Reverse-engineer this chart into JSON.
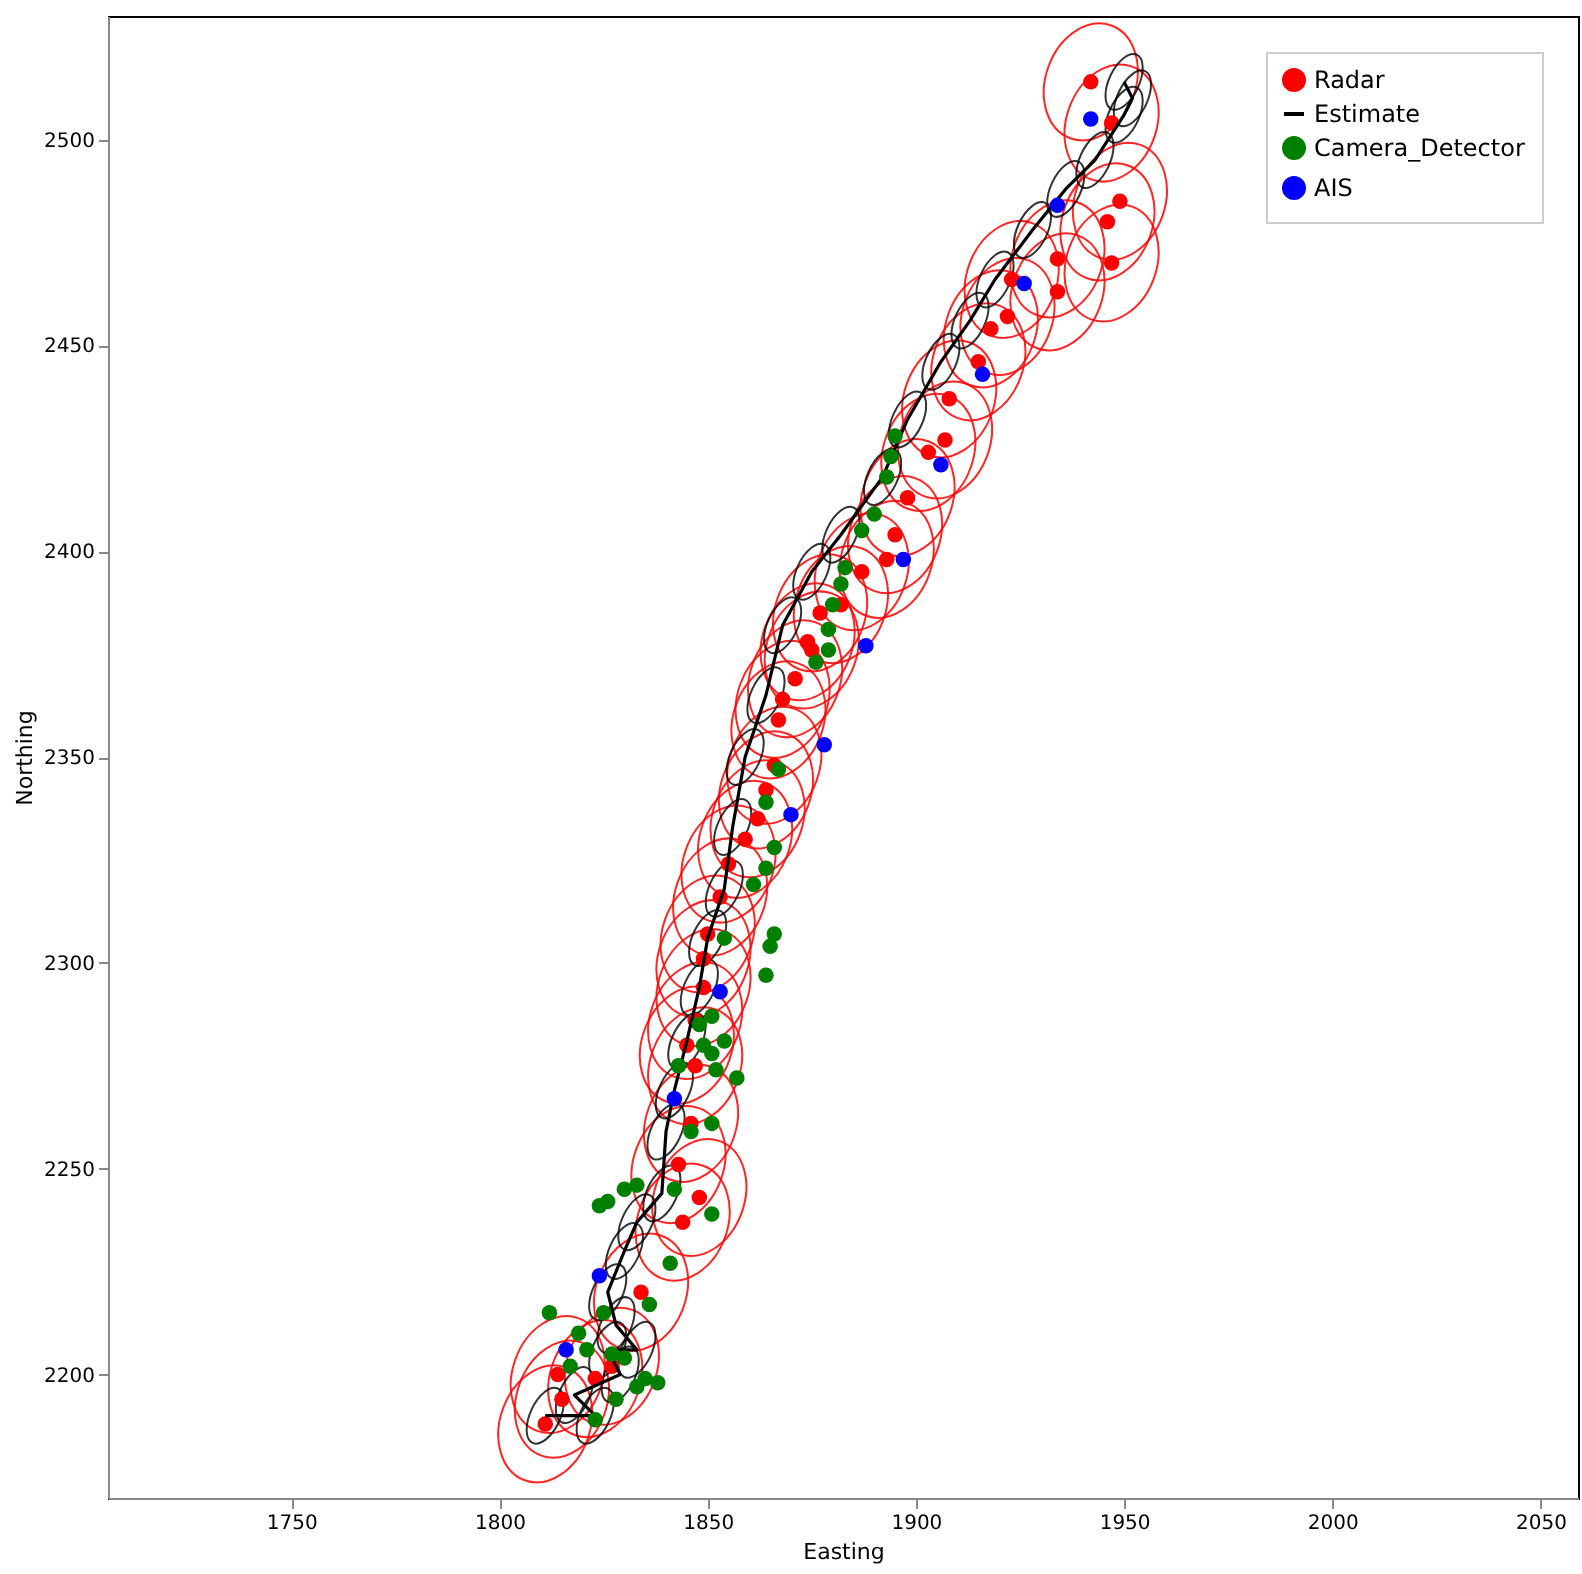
{
  "chart_data": {
    "type": "scatter",
    "xlabel": "Easting",
    "ylabel": "Northing",
    "xlim": [
      1706,
      2059
    ],
    "ylim": [
      2170,
      2530
    ],
    "xticks": [
      1750,
      1800,
      1850,
      1900,
      1950,
      2000,
      2050
    ],
    "yticks": [
      2200,
      2250,
      2300,
      2350,
      2400,
      2450,
      2500
    ],
    "grid": false,
    "legend": "top right",
    "marker": "circle",
    "series": [
      {
        "name": "Radar",
        "color": "#ff0000",
        "x": [
          1942,
          1947,
          1949,
          1946,
          1947,
          1934,
          1934,
          1923,
          1922,
          1918,
          1915,
          1908,
          1907,
          1903,
          1898,
          1895,
          1893,
          1887,
          1882,
          1877,
          1874,
          1875,
          1871,
          1868,
          1867,
          1866,
          1864,
          1862,
          1859,
          1855,
          1853,
          1850,
          1849,
          1849,
          1847,
          1845,
          1847,
          1846,
          1843,
          1848,
          1844,
          1834,
          1827,
          1823,
          1814,
          1815,
          1811
        ],
        "values": [
          2514,
          2504,
          2485,
          2480,
          2470,
          2471,
          2463,
          2466,
          2457,
          2454,
          2446,
          2437,
          2427,
          2424,
          2413,
          2404,
          2398,
          2395,
          2387,
          2385,
          2378,
          2376,
          2369,
          2364,
          2359,
          2348,
          2342,
          2335,
          2330,
          2324,
          2316,
          2307,
          2301,
          2294,
          2286,
          2280,
          2275,
          2261,
          2251,
          2243,
          2237,
          2220,
          2202,
          2199,
          2200,
          2194,
          2188
        ]
      },
      {
        "name": "Estimate",
        "color": "#000000",
        "type": "line",
        "line_style": "solid",
        "marker": "none",
        "x": [
          1811,
          1823,
          1818,
          1829,
          1826,
          1833,
          1828,
          1826,
          1830,
          1833,
          1839,
          1840,
          1842,
          1845,
          1848,
          1850,
          1854,
          1856,
          1859,
          1864,
          1868,
          1875,
          1882,
          1892,
          1898,
          1906,
          1913,
          1919,
          1928,
          1936,
          1943,
          1950,
          1952,
          1950
        ],
        "values": [
          2190,
          2190,
          2195,
          2200,
          2206,
          2206,
          2212,
          2220,
          2230,
          2237,
          2244,
          2259,
          2269,
          2281,
          2294,
          2306,
          2318,
          2333,
          2350,
          2365,
          2382,
          2395,
          2404,
          2418,
          2432,
          2446,
          2456,
          2466,
          2478,
          2488,
          2495,
          2506,
          2510,
          2514
        ]
      },
      {
        "name": "Camera_Detector",
        "color": "#008000",
        "x": [
          1895,
          1894,
          1893,
          1890,
          1887,
          1883,
          1882,
          1880,
          1879,
          1879,
          1876,
          1867,
          1864,
          1866,
          1864,
          1861,
          1866,
          1865,
          1864,
          1854,
          1851,
          1848,
          1854,
          1851,
          1849,
          1852,
          1857,
          1843,
          1851,
          1846,
          1851,
          1842,
          1833,
          1830,
          1826,
          1824,
          1841,
          1836,
          1812,
          1825,
          1819,
          1821,
          1827,
          1830,
          1817,
          1835,
          1838,
          1833,
          1828,
          1823
        ],
        "values": [
          2428,
          2423,
          2418,
          2409,
          2405,
          2396,
          2392,
          2387,
          2381,
          2376,
          2373,
          2347,
          2339,
          2328,
          2323,
          2319,
          2307,
          2304,
          2297,
          2306,
          2287,
          2285,
          2281,
          2278,
          2280,
          2274,
          2272,
          2275,
          2261,
          2259,
          2239,
          2245,
          2246,
          2245,
          2242,
          2241,
          2227,
          2217,
          2215,
          2215,
          2210,
          2206,
          2205,
          2204,
          2202,
          2199,
          2198,
          2197,
          2194,
          2189
        ]
      },
      {
        "name": "AIS",
        "color": "#0000ff",
        "x": [
          1942,
          1934,
          1926,
          1916,
          1906,
          1897,
          1888,
          1878,
          1870,
          1853,
          1842,
          1824,
          1816
        ],
        "values": [
          2505,
          2484,
          2465,
          2443,
          2421,
          2398,
          2377,
          2353,
          2336,
          2293,
          2267,
          2224,
          2206
        ]
      }
    ]
  }
}
